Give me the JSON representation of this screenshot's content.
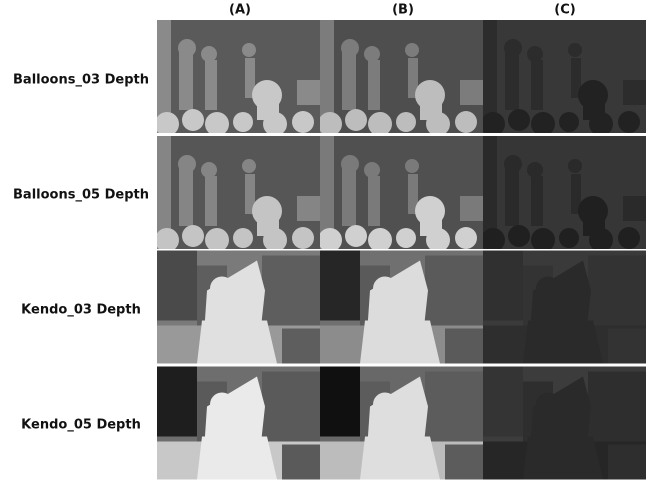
{
  "columns": [
    "(A)",
    "(B)",
    "(C)"
  ],
  "rows": [
    "Balloons_03 Depth",
    "Balloons_05 Depth",
    "Kendo_03 Depth",
    "Kendo_05 Depth"
  ]
}
